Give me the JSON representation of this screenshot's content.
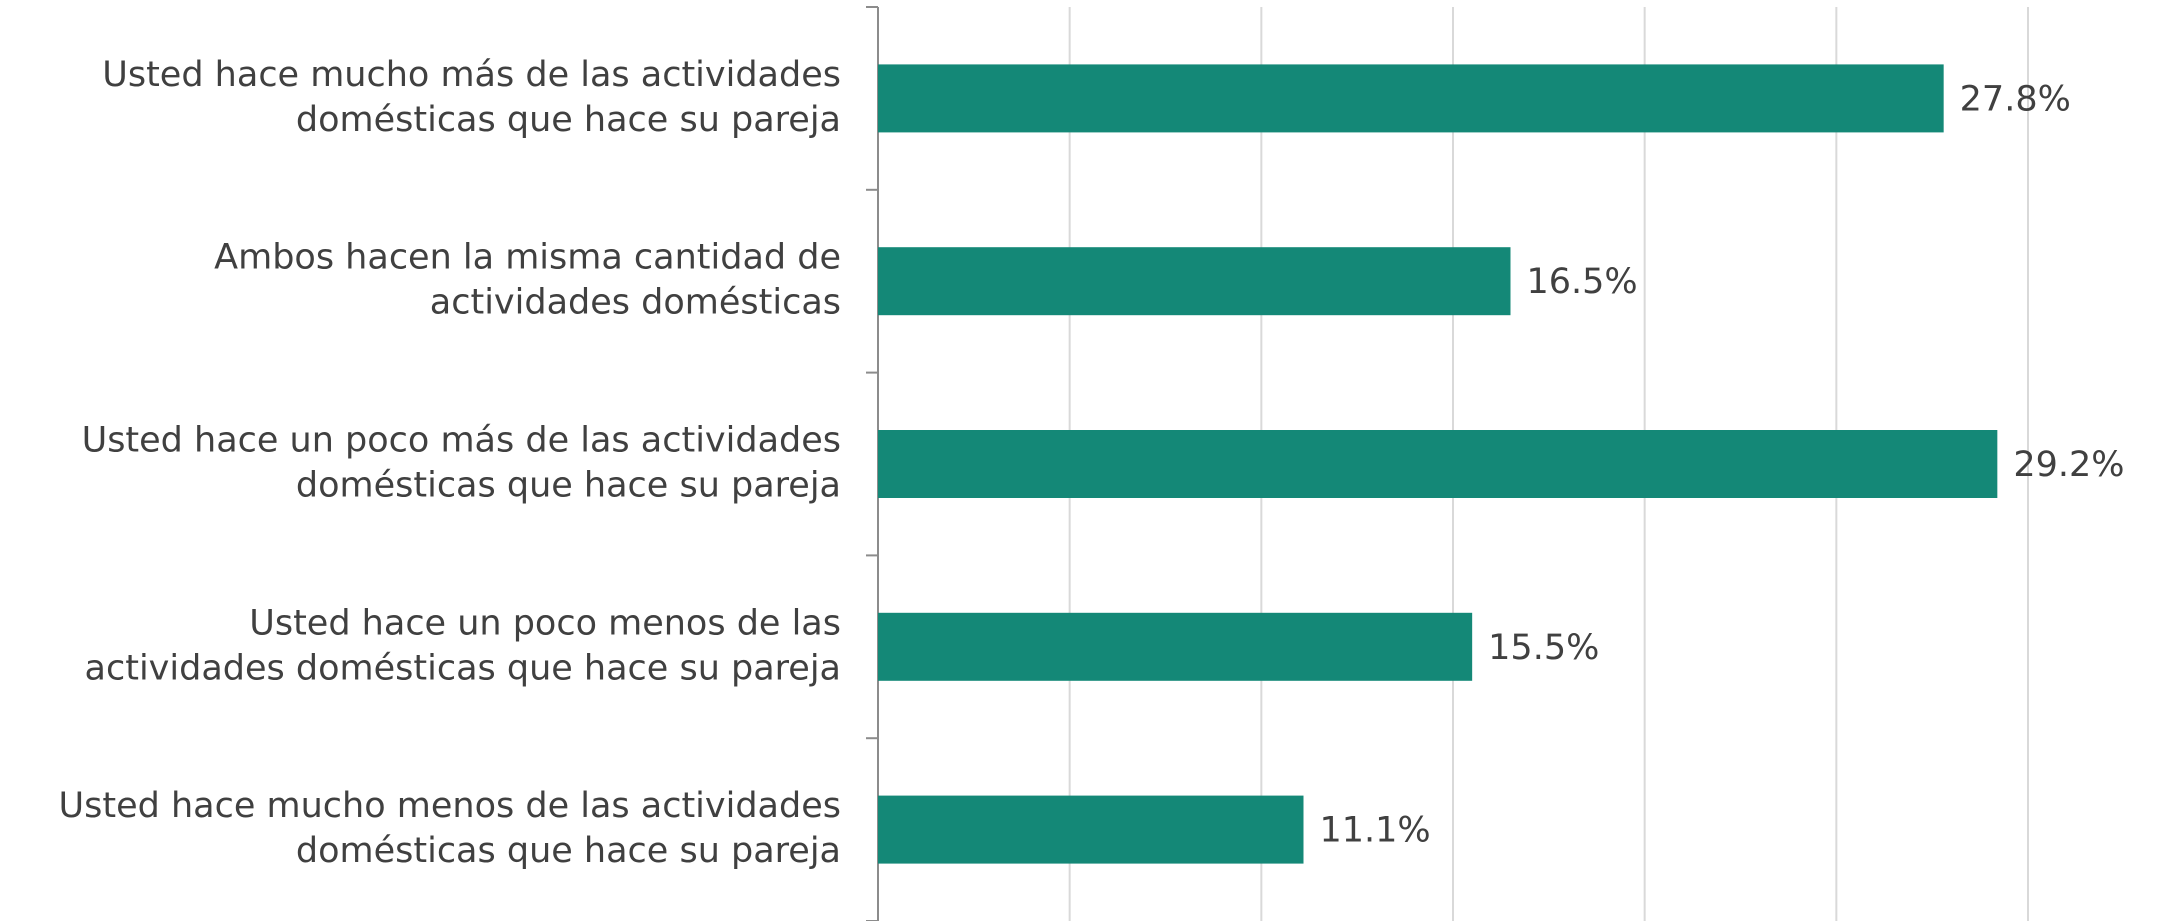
{
  "chart_data": {
    "type": "hbar",
    "categories": [
      [
        "Usted hace mucho más de las actividades",
        "domésticas que hace su pareja"
      ],
      [
        "Ambos hacen la misma cantidad de",
        "actividades domésticas"
      ],
      [
        "Usted hace un poco más de las actividades",
        "domésticas que hace su pareja"
      ],
      [
        "Usted hace un poco menos de las",
        "actividades domésticas que hace su pareja"
      ],
      [
        "Usted hace mucho menos de las actividades",
        "domésticas que hace su pareja"
      ]
    ],
    "values": [
      27.8,
      16.5,
      29.2,
      15.5,
      11.1
    ],
    "value_labels": [
      "27.8%",
      "16.5%",
      "29.2%",
      "15.5%",
      "11.1%"
    ],
    "color": "#148877",
    "xlim": [
      0,
      30
    ],
    "xticks": [
      0,
      5,
      10,
      15,
      20,
      25,
      30
    ],
    "grid": true
  }
}
